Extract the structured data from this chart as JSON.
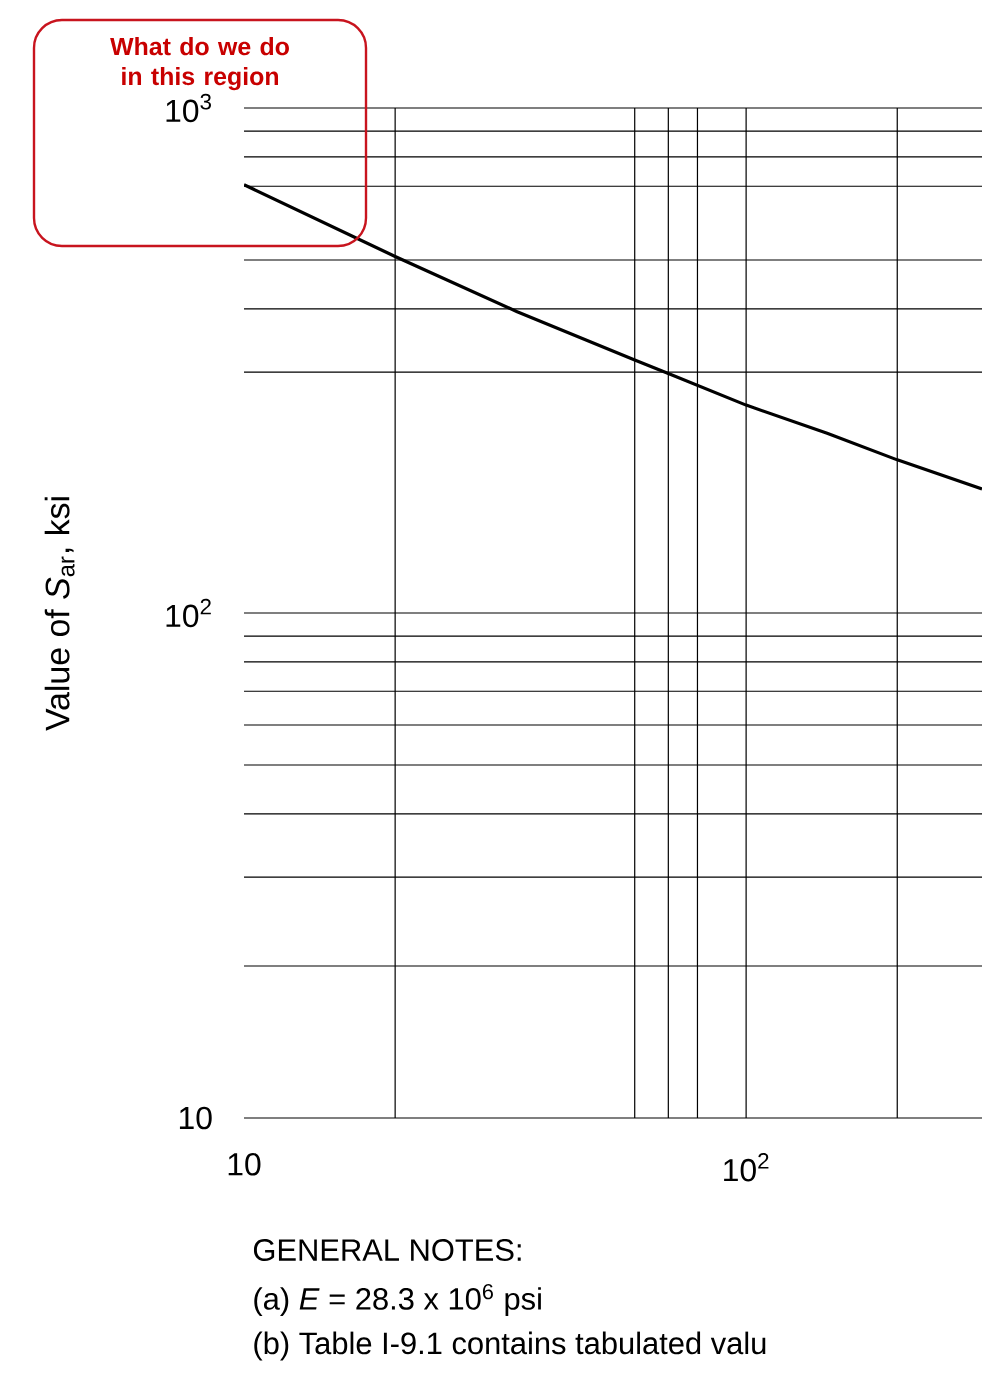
{
  "chart_data": {
    "type": "line",
    "ylabel": "Value of *S*$_{ar}$, ksi",
    "annotations": [
      "What do we do in this region",
      "GENERAL NOTES:",
      "(a) *E* = 28.3 x 10$^{6}$ psi",
      "(b) Table I-9.1 contains tabulated valu"
    ],
    "x": [
      10,
      20,
      35,
      60,
      70,
      100,
      145,
      200,
      295
    ],
    "series": [
      {
        "color": "#000000",
        "values": [
          705,
          508,
          395,
          317,
          298,
          258,
          227,
          201,
          176
        ]
      }
    ],
    "xlim": [
      10,
      295
    ],
    "ylim": [
      10,
      1000
    ],
    "log": "xy",
    "grid": true,
    "marker": "none",
    "line_style": "solid",
    "xticks": [
      10,
      {
        "value": 20,
        "label": null
      },
      {
        "value": 60,
        "label": null
      },
      {
        "value": 70,
        "label": null
      },
      {
        "value": 80,
        "label": null
      },
      {
        "value": 100,
        "label": "10$^{2}$"
      },
      {
        "value": 200,
        "label": null
      }
    ],
    "yticks": [
      10,
      {
        "value": 20,
        "label": null
      },
      {
        "value": 30,
        "label": null
      },
      {
        "value": 40,
        "label": null
      },
      {
        "value": 50,
        "label": null
      },
      {
        "value": 60,
        "label": null
      },
      {
        "value": 70,
        "label": null
      },
      {
        "value": 80,
        "label": null
      },
      {
        "value": 90,
        "label": null
      },
      {
        "value": 100,
        "label": "10$^{2}$"
      },
      {
        "value": 300,
        "label": null
      },
      {
        "value": 400,
        "label": null
      },
      {
        "value": 500,
        "label": null
      },
      {
        "value": 700,
        "label": null
      },
      {
        "value": 800,
        "label": null
      },
      {
        "value": 900,
        "label": null
      },
      {
        "value": 1000,
        "label": "10$^{3}$"
      }
    ]
  }
}
